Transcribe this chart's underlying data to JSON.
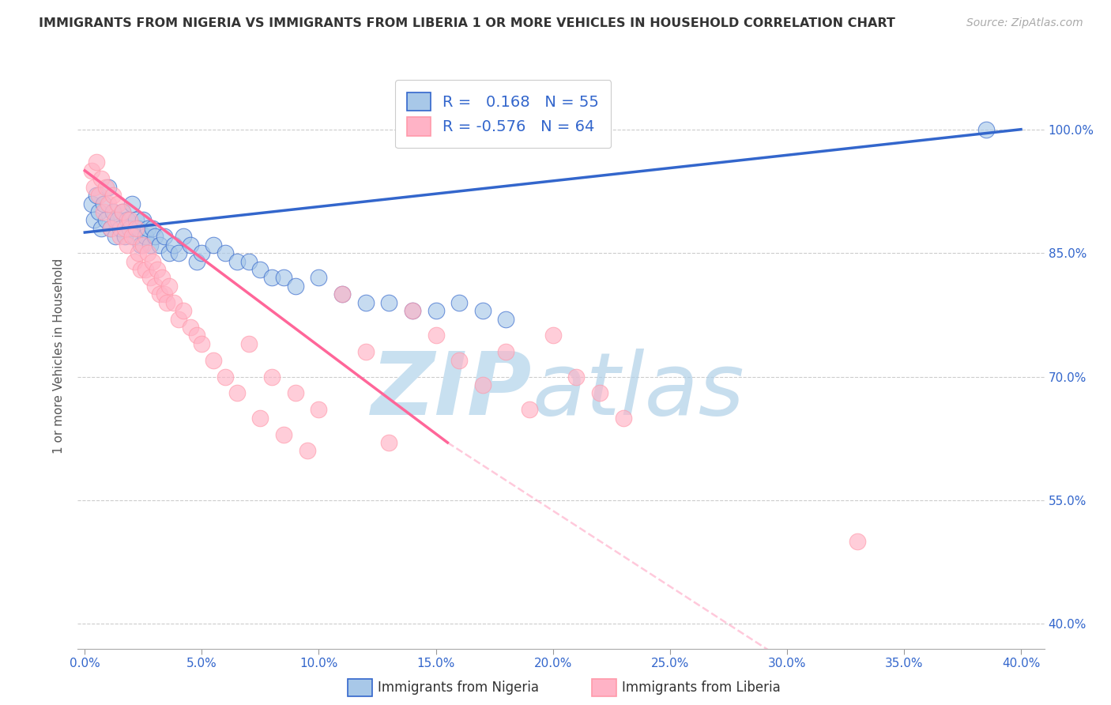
{
  "title": "IMMIGRANTS FROM NIGERIA VS IMMIGRANTS FROM LIBERIA 1 OR MORE VEHICLES IN HOUSEHOLD CORRELATION CHART",
  "source": "Source: ZipAtlas.com",
  "xlabel_nigeria": "Immigrants from Nigeria",
  "xlabel_liberia": "Immigrants from Liberia",
  "ylabel": "1 or more Vehicles in Household",
  "r_nigeria": 0.168,
  "n_nigeria": 55,
  "r_liberia": -0.576,
  "n_liberia": 64,
  "xlim": [
    0.0,
    40.0
  ],
  "ylim": [
    40.0,
    104.0
  ],
  "yticks": [
    40.0,
    55.0,
    70.0,
    85.0,
    100.0
  ],
  "xticks": [
    0.0,
    5.0,
    10.0,
    15.0,
    20.0,
    25.0,
    30.0,
    35.0,
    40.0
  ],
  "color_nigeria": "#A8C8E8",
  "color_liberia": "#FFB3C6",
  "line_color_nigeria": "#3366CC",
  "line_color_liberia": "#FF6699",
  "background_color": "#FFFFFF",
  "nigeria_x": [
    0.3,
    0.4,
    0.5,
    0.6,
    0.7,
    0.8,
    0.9,
    1.0,
    1.1,
    1.2,
    1.3,
    1.4,
    1.5,
    1.6,
    1.7,
    1.8,
    1.9,
    2.0,
    2.1,
    2.2,
    2.3,
    2.4,
    2.5,
    2.6,
    2.7,
    2.8,
    2.9,
    3.0,
    3.2,
    3.4,
    3.6,
    3.8,
    4.0,
    4.2,
    4.5,
    4.8,
    5.0,
    5.5,
    6.0,
    6.5,
    7.0,
    7.5,
    8.0,
    8.5,
    9.0,
    10.0,
    11.0,
    12.0,
    13.0,
    14.0,
    15.0,
    16.0,
    17.0,
    18.0,
    38.5
  ],
  "nigeria_y": [
    91,
    89,
    92,
    90,
    88,
    91,
    89,
    93,
    88,
    90,
    87,
    89,
    88,
    90,
    87,
    89,
    88,
    91,
    87,
    89,
    88,
    86,
    89,
    87,
    88,
    86,
    88,
    87,
    86,
    87,
    85,
    86,
    85,
    87,
    86,
    84,
    85,
    86,
    85,
    84,
    84,
    83,
    82,
    82,
    81,
    82,
    80,
    79,
    79,
    78,
    78,
    79,
    78,
    77,
    100
  ],
  "liberia_x": [
    0.3,
    0.4,
    0.5,
    0.6,
    0.7,
    0.8,
    0.9,
    1.0,
    1.1,
    1.2,
    1.3,
    1.4,
    1.5,
    1.6,
    1.7,
    1.8,
    1.9,
    2.0,
    2.1,
    2.2,
    2.3,
    2.4,
    2.5,
    2.6,
    2.7,
    2.8,
    2.9,
    3.0,
    3.1,
    3.2,
    3.3,
    3.4,
    3.5,
    3.6,
    3.8,
    4.0,
    4.2,
    4.5,
    4.8,
    5.0,
    5.5,
    6.0,
    6.5,
    7.0,
    7.5,
    8.0,
    8.5,
    9.0,
    9.5,
    10.0,
    11.0,
    12.0,
    13.0,
    14.0,
    15.0,
    16.0,
    17.0,
    18.0,
    19.0,
    20.0,
    21.0,
    22.0,
    23.0,
    33.0
  ],
  "liberia_y": [
    95,
    93,
    96,
    92,
    94,
    90,
    93,
    91,
    88,
    92,
    89,
    91,
    87,
    90,
    88,
    86,
    89,
    87,
    84,
    88,
    85,
    83,
    86,
    83,
    85,
    82,
    84,
    81,
    83,
    80,
    82,
    80,
    79,
    81,
    79,
    77,
    78,
    76,
    75,
    74,
    72,
    70,
    68,
    74,
    65,
    70,
    63,
    68,
    61,
    66,
    80,
    73,
    62,
    78,
    75,
    72,
    69,
    73,
    66,
    75,
    70,
    68,
    65,
    50
  ],
  "nigeria_trendline": [
    0.0,
    40.0,
    87.5,
    100.0
  ],
  "liberia_trendline_solid": [
    0.0,
    15.5,
    95.0,
    62.0
  ],
  "liberia_trendline_dashed": [
    15.5,
    40.0,
    62.0,
    17.0
  ]
}
